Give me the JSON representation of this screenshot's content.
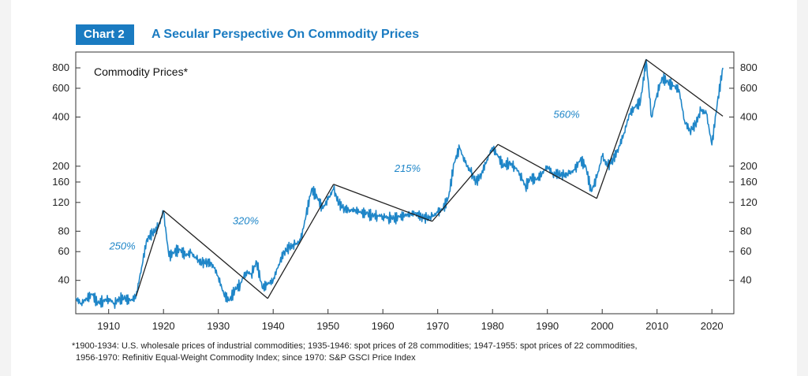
{
  "header": {
    "chart_number": "Chart 2",
    "chart_title": "A Secular Perspective On Commodity Prices"
  },
  "footnote": {
    "line1": "*1900-1934: U.S. wholesale prices of industrial commodities; 1935-1946: spot prices of 28 commodities; 1947-1955: spot prices of 22 commodities,",
    "line2": "1956-1970: Refinitiv Equal-Weight Commodity Index; since 1970: S&P GSCI Price Index"
  },
  "colors": {
    "accent": "#1a7bc1",
    "series": "#1f86c8",
    "trend": "#222222"
  },
  "chart_data": {
    "type": "line",
    "title": "A Secular Perspective On Commodity Prices",
    "series_label": "Commodity Prices*",
    "y_scale": "log",
    "xlim": [
      1904,
      2024
    ],
    "ylim": [
      25,
      1000
    ],
    "x_ticks": [
      1910,
      1920,
      1930,
      1940,
      1950,
      1960,
      1970,
      1980,
      1990,
      2000,
      2010,
      2020
    ],
    "y_ticks": [
      40,
      60,
      80,
      120,
      160,
      200,
      400,
      600,
      800
    ],
    "series": [
      {
        "name": "Commodity Prices",
        "points": [
          [
            1904,
            31
          ],
          [
            1905,
            29
          ],
          [
            1906,
            31
          ],
          [
            1907,
            33
          ],
          [
            1908,
            29
          ],
          [
            1909,
            30
          ],
          [
            1910,
            31
          ],
          [
            1911,
            29
          ],
          [
            1912,
            31
          ],
          [
            1913,
            31
          ],
          [
            1914,
            30
          ],
          [
            1915,
            32
          ],
          [
            1916,
            48
          ],
          [
            1917,
            72
          ],
          [
            1918,
            78
          ],
          [
            1919,
            84
          ],
          [
            1920,
            105
          ],
          [
            1921,
            56
          ],
          [
            1922,
            60
          ],
          [
            1923,
            62
          ],
          [
            1924,
            57
          ],
          [
            1925,
            59
          ],
          [
            1926,
            54
          ],
          [
            1927,
            51
          ],
          [
            1928,
            52
          ],
          [
            1929,
            50
          ],
          [
            1930,
            42
          ],
          [
            1931,
            33
          ],
          [
            1932,
            30
          ],
          [
            1933,
            35
          ],
          [
            1934,
            38
          ],
          [
            1935,
            45
          ],
          [
            1936,
            44
          ],
          [
            1937,
            52
          ],
          [
            1938,
            36
          ],
          [
            1939,
            38
          ],
          [
            1940,
            40
          ],
          [
            1941,
            50
          ],
          [
            1942,
            60
          ],
          [
            1943,
            64
          ],
          [
            1944,
            66
          ],
          [
            1945,
            70
          ],
          [
            1946,
            100
          ],
          [
            1947,
            145
          ],
          [
            1948,
            130
          ],
          [
            1949,
            110
          ],
          [
            1950,
            125
          ],
          [
            1951,
            145
          ],
          [
            1952,
            118
          ],
          [
            1953,
            110
          ],
          [
            1954,
            108
          ],
          [
            1955,
            108
          ],
          [
            1956,
            104
          ],
          [
            1957,
            103
          ],
          [
            1958,
            100
          ],
          [
            1959,
            100
          ],
          [
            1960,
            99
          ],
          [
            1961,
            97
          ],
          [
            1962,
            96
          ],
          [
            1963,
            98
          ],
          [
            1964,
            100
          ],
          [
            1965,
            102
          ],
          [
            1966,
            104
          ],
          [
            1967,
            98
          ],
          [
            1968,
            96
          ],
          [
            1969,
            98
          ],
          [
            1970,
            104
          ],
          [
            1971,
            110
          ],
          [
            1972,
            130
          ],
          [
            1973,
            210
          ],
          [
            1974,
            260
          ],
          [
            1975,
            210
          ],
          [
            1976,
            185
          ],
          [
            1977,
            160
          ],
          [
            1978,
            180
          ],
          [
            1979,
            220
          ],
          [
            1980,
            260
          ],
          [
            1981,
            230
          ],
          [
            1982,
            200
          ],
          [
            1983,
            210
          ],
          [
            1984,
            200
          ],
          [
            1985,
            180
          ],
          [
            1986,
            150
          ],
          [
            1987,
            170
          ],
          [
            1988,
            165
          ],
          [
            1989,
            180
          ],
          [
            1990,
            200
          ],
          [
            1991,
            180
          ],
          [
            1992,
            180
          ],
          [
            1993,
            175
          ],
          [
            1994,
            180
          ],
          [
            1995,
            190
          ],
          [
            1996,
            220
          ],
          [
            1997,
            200
          ],
          [
            1998,
            140
          ],
          [
            1999,
            170
          ],
          [
            2000,
            230
          ],
          [
            2001,
            200
          ],
          [
            2002,
            220
          ],
          [
            2003,
            260
          ],
          [
            2004,
            320
          ],
          [
            2005,
            420
          ],
          [
            2006,
            460
          ],
          [
            2007,
            500
          ],
          [
            2008,
            900
          ],
          [
            2009,
            400
          ],
          [
            2010,
            560
          ],
          [
            2011,
            700
          ],
          [
            2012,
            650
          ],
          [
            2013,
            620
          ],
          [
            2014,
            590
          ],
          [
            2015,
            380
          ],
          [
            2016,
            330
          ],
          [
            2017,
            360
          ],
          [
            2018,
            440
          ],
          [
            2019,
            420
          ],
          [
            2020,
            270
          ],
          [
            2021,
            490
          ],
          [
            2022,
            800
          ]
        ]
      }
    ],
    "trend_lines": [
      [
        [
          1915,
          32
        ],
        [
          1920,
          107
        ]
      ],
      [
        [
          1920,
          107
        ],
        [
          1939,
          31
        ]
      ],
      [
        [
          1939,
          31
        ],
        [
          1951,
          155
        ]
      ],
      [
        [
          1951,
          155
        ],
        [
          1969,
          92
        ]
      ],
      [
        [
          1969,
          92
        ],
        [
          1981,
          272
        ]
      ],
      [
        [
          1981,
          272
        ],
        [
          1999,
          127
        ]
      ],
      [
        [
          1999,
          127
        ],
        [
          2008,
          900
        ]
      ],
      [
        [
          2008,
          900
        ],
        [
          2022,
          405
        ]
      ]
    ],
    "annotations": [
      {
        "text": "250%",
        "x": 1912.5,
        "y": 62
      },
      {
        "text": "320%",
        "x": 1935,
        "y": 88
      },
      {
        "text": "215%",
        "x": 1964.5,
        "y": 185
      },
      {
        "text": "560%",
        "x": 1993.5,
        "y": 395
      }
    ]
  }
}
